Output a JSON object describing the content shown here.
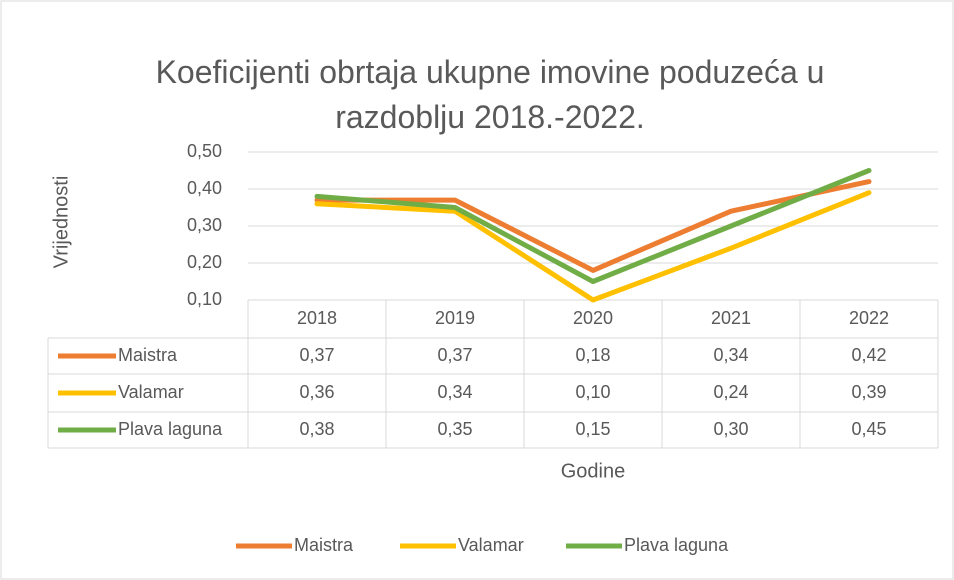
{
  "chart_data": {
    "type": "line",
    "title": "Koeficijenti obrtaja ukupne imovine poduzeća u razdoblju 2018.-2022.",
    "xlabel": "Godine",
    "ylabel": "Vrijednosti",
    "categories": [
      "2018",
      "2019",
      "2020",
      "2021",
      "2022"
    ],
    "series": [
      {
        "name": "Maistra",
        "color": "#ED7D31",
        "values": [
          0.37,
          0.37,
          0.18,
          0.34,
          0.42
        ],
        "value_labels": [
          "0,37",
          "0,37",
          "0,18",
          "0,34",
          "0,42"
        ]
      },
      {
        "name": "Valamar",
        "color": "#FFC000",
        "values": [
          0.36,
          0.34,
          0.1,
          0.24,
          0.39
        ],
        "value_labels": [
          "0,36",
          "0,34",
          "0,10",
          "0,24",
          "0,39"
        ]
      },
      {
        "name": "Plava laguna",
        "color": "#70AD47",
        "values": [
          0.38,
          0.35,
          0.15,
          0.3,
          0.45
        ],
        "value_labels": [
          "0,38",
          "0,35",
          "0,15",
          "0,30",
          "0,45"
        ]
      }
    ],
    "ylim": [
      0.1,
      0.5
    ],
    "yticks": [
      {
        "value": 0.1,
        "label": "0,10"
      },
      {
        "value": 0.2,
        "label": "0,20"
      },
      {
        "value": 0.3,
        "label": "0,30"
      },
      {
        "value": 0.4,
        "label": "0,40"
      },
      {
        "value": 0.5,
        "label": "0,50"
      }
    ],
    "grid": true,
    "legend": "bottom"
  }
}
